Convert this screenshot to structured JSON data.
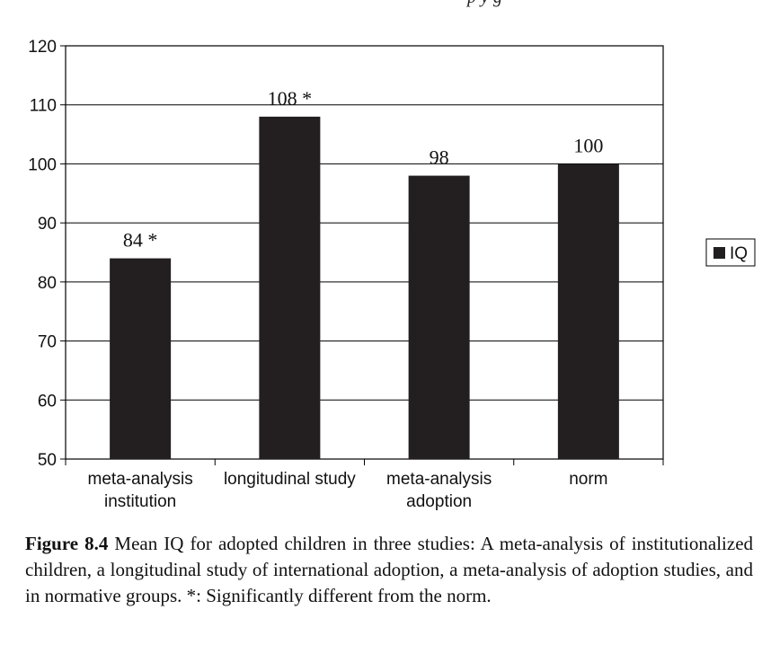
{
  "header_fragment": "p                    y g",
  "caption": {
    "label": "Figure 8.4",
    "text": "Mean IQ for adopted children in three studies: A meta-analysis of institutionalized children, a longitudinal study of international adoption, a meta-analysis of adoption studies, and in normative groups. *: Significantly different from the norm."
  },
  "chart_data": {
    "type": "bar",
    "title": "",
    "xlabel": "",
    "ylabel": "",
    "categories": [
      [
        "meta-analysis",
        "institution"
      ],
      [
        "longitudinal study"
      ],
      [
        "meta-analysis",
        "adoption"
      ],
      [
        "norm"
      ]
    ],
    "series": [
      {
        "name": "IQ",
        "values": [
          84,
          108,
          98,
          100
        ],
        "data_labels": [
          "84 *",
          "108 *",
          "98",
          "100"
        ],
        "color": "#231f20"
      }
    ],
    "ylim": [
      50,
      120
    ],
    "yticks": [
      50,
      60,
      70,
      80,
      90,
      100,
      110,
      120
    ],
    "grid": true,
    "legend_position": "right"
  }
}
